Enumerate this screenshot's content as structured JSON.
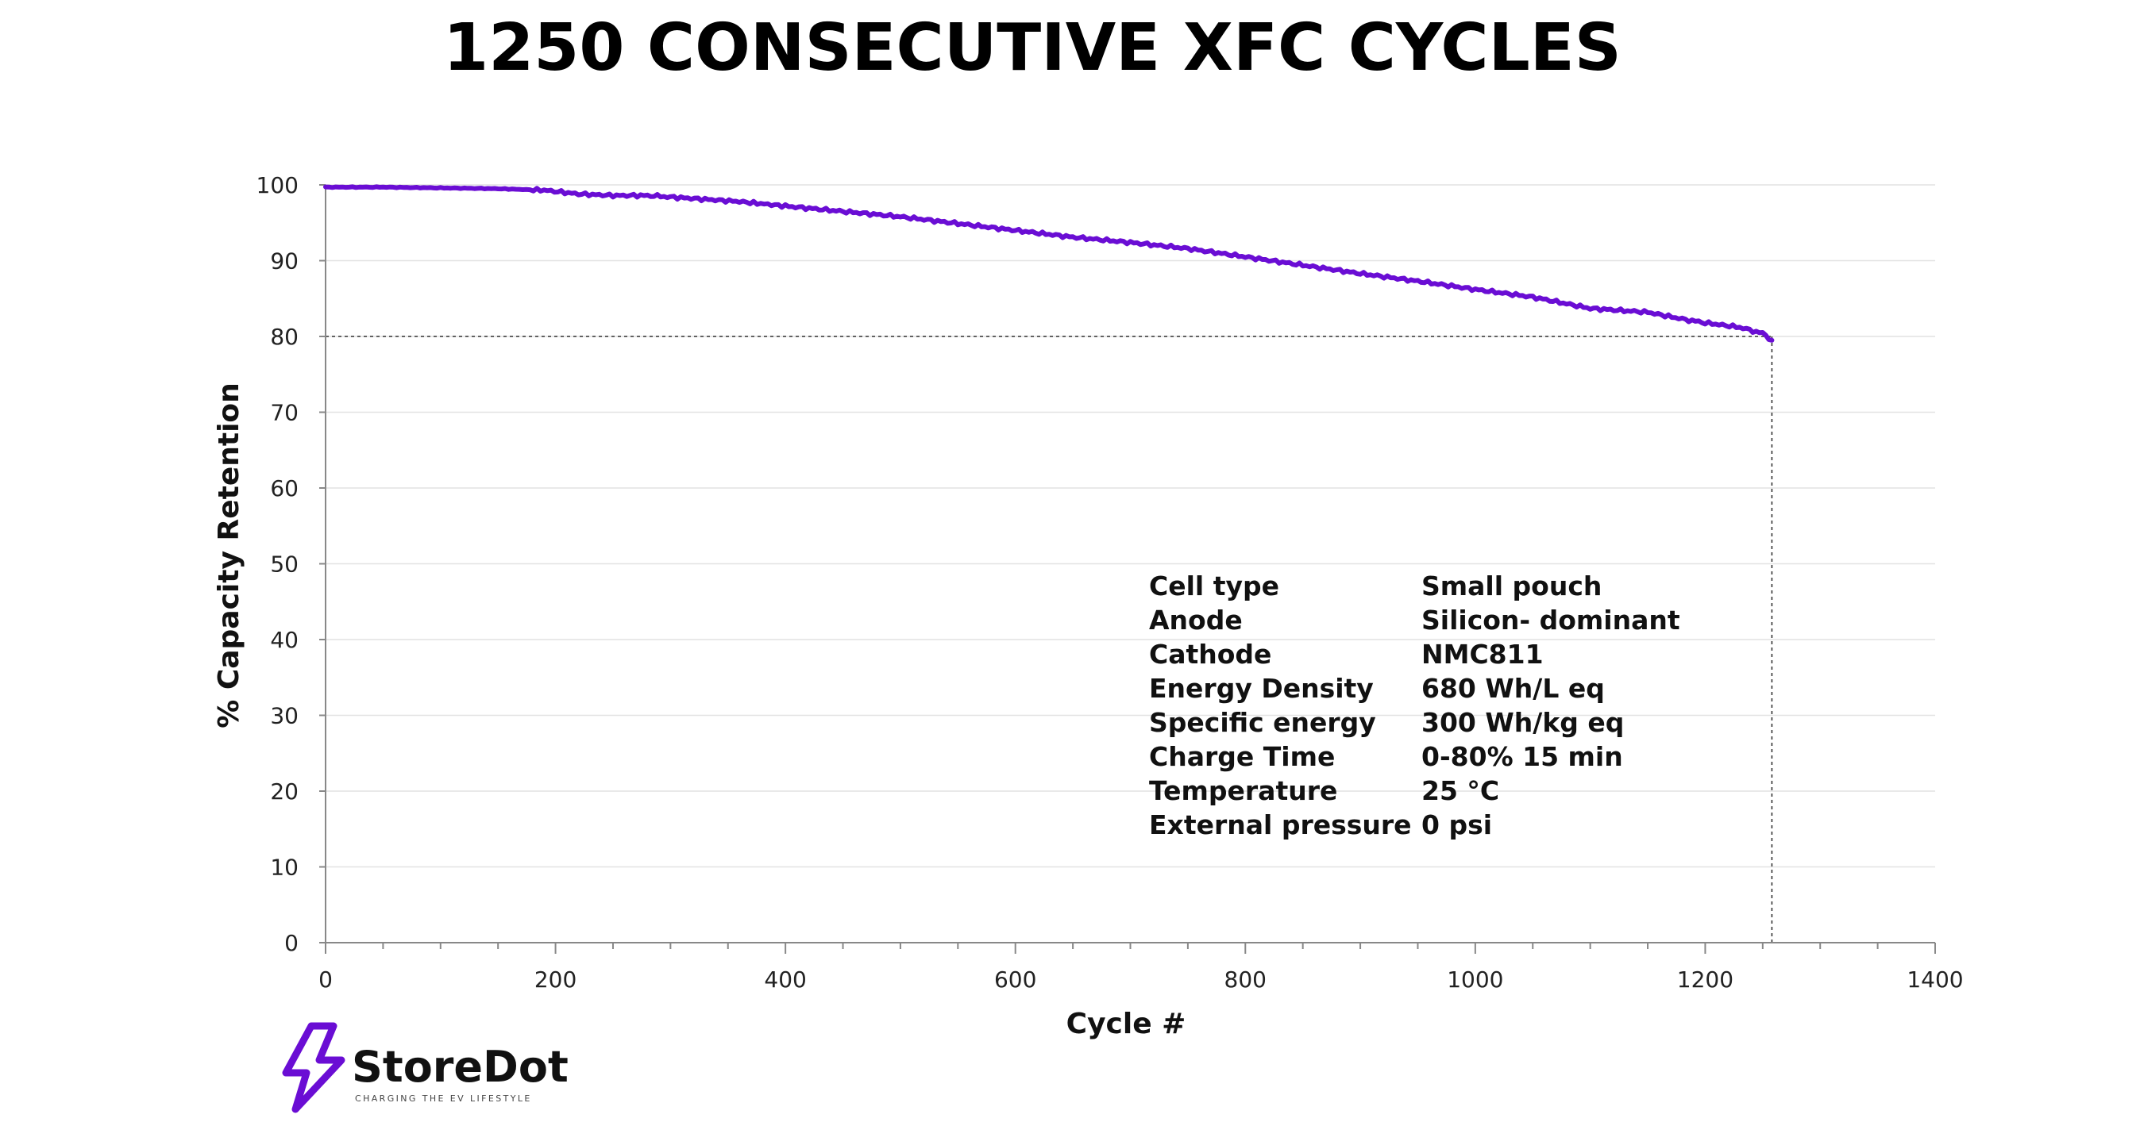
{
  "chart_data": {
    "type": "line",
    "title": "1250 CONSECUTIVE XFC CYCLES",
    "xlabel": "Cycle #",
    "ylabel": "% Capacity Retention",
    "xlim": [
      0,
      1400
    ],
    "ylim": [
      0,
      100
    ],
    "xticks": [
      0,
      200,
      400,
      600,
      800,
      1000,
      1200,
      1400
    ],
    "yticks": [
      0,
      10,
      20,
      30,
      40,
      50,
      60,
      70,
      80,
      90,
      100
    ],
    "grid": "horizontal",
    "series": [
      {
        "name": "Capacity retention",
        "color": "#6a0dd4",
        "x": [
          0,
          50,
          100,
          150,
          190,
          220,
          250,
          280,
          300,
          330,
          360,
          400,
          450,
          500,
          550,
          600,
          650,
          700,
          750,
          800,
          850,
          900,
          950,
          1000,
          1050,
          1100,
          1150,
          1180,
          1200,
          1230,
          1250,
          1258
        ],
        "y": [
          99.7,
          99.7,
          99.6,
          99.5,
          99.3,
          98.8,
          98.6,
          98.6,
          98.4,
          98.1,
          97.8,
          97.2,
          96.5,
          95.8,
          94.9,
          94.0,
          93.1,
          92.4,
          91.6,
          90.5,
          89.4,
          88.3,
          87.3,
          86.2,
          85.2,
          83.7,
          83.2,
          82.3,
          81.8,
          81.2,
          80.4,
          79.5
        ]
      }
    ],
    "reference_lines": [
      {
        "orientation": "horizontal",
        "y": 80,
        "x_range": [
          0,
          1258
        ],
        "style": "dotted"
      },
      {
        "orientation": "vertical",
        "x": 1258,
        "y_range": [
          0,
          80
        ],
        "style": "dotted"
      }
    ],
    "annotation_table": [
      {
        "label": "Cell type",
        "value": "Small pouch"
      },
      {
        "label": "Anode",
        "value": "Silicon- dominant"
      },
      {
        "label": "Cathode",
        "value": "NMC811"
      },
      {
        "label": "Energy Density",
        "value": "680 Wh/L eq"
      },
      {
        "label": "Specific energy",
        "value": "300 Wh/kg eq"
      },
      {
        "label": "Charge Time",
        "value": "0-80% 15 min"
      },
      {
        "label": "Temperature",
        "value": "25 °C"
      },
      {
        "label": "External pressure",
        "value": "0 psi"
      }
    ]
  },
  "logo": {
    "name": "StoreDot",
    "tagline": "CHARGING THE EV LIFESTYLE",
    "accent": "#6a0dd4"
  }
}
